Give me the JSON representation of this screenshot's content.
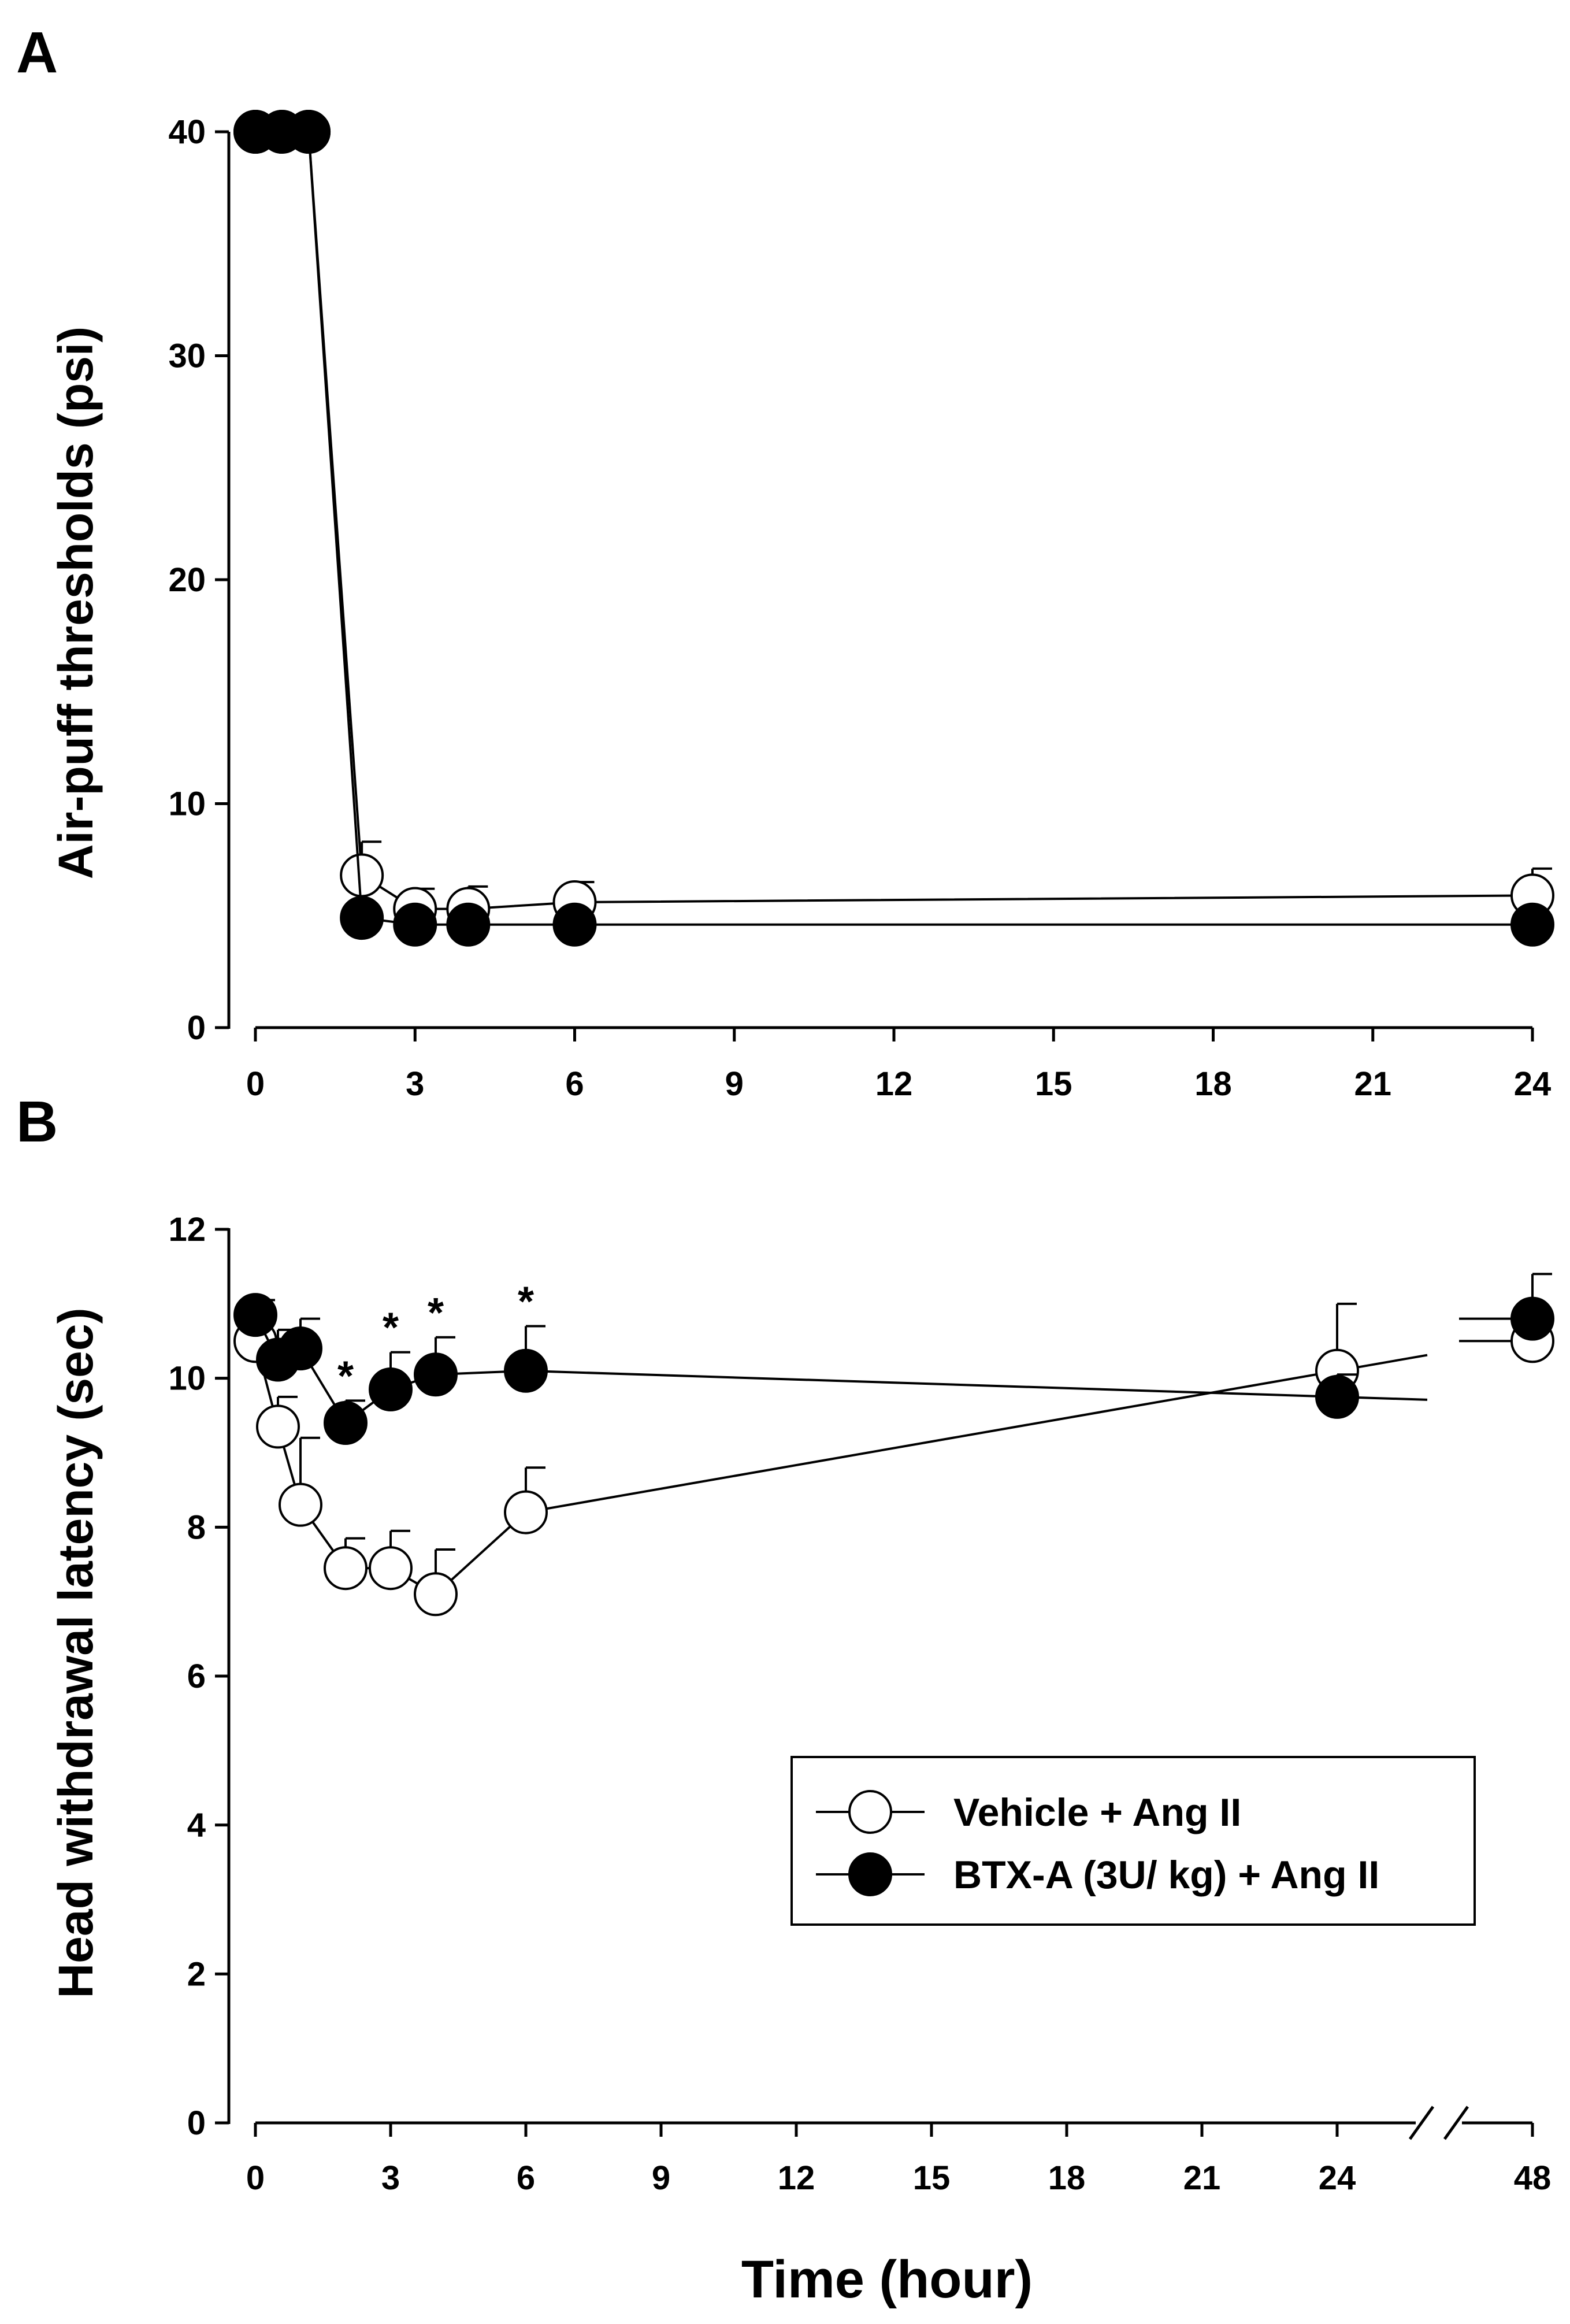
{
  "chart_data": [
    {
      "panel": "A",
      "type": "line",
      "ylabel": "Air-puff thresholds (psi)",
      "xlabel": "",
      "ylim": [
        0,
        40
      ],
      "xlim": [
        0,
        24
      ],
      "yticks": [
        0,
        10,
        20,
        30,
        40
      ],
      "xticks": [
        0,
        3,
        6,
        9,
        12,
        15,
        18,
        21,
        24
      ],
      "grid": false,
      "series": [
        {
          "name": "Vehicle + Ang II",
          "marker": "open-circle",
          "x": [
            0,
            0.5,
            1,
            2,
            3,
            4,
            6,
            24
          ],
          "y": [
            40,
            40,
            40,
            6.8,
            5.3,
            5.3,
            5.6,
            5.9
          ],
          "err": [
            0,
            0,
            0,
            1.5,
            0.9,
            1.0,
            0.9,
            1.2
          ]
        },
        {
          "name": "BTX-A (3U/ kg) + Ang II",
          "marker": "filled-circle",
          "x": [
            0,
            0.5,
            1,
            2,
            3,
            4,
            6,
            24
          ],
          "y": [
            40,
            40,
            40,
            4.9,
            4.6,
            4.6,
            4.6,
            4.6
          ],
          "err": [
            0,
            0,
            0,
            0.4,
            0.4,
            0.4,
            0.4,
            0.4
          ]
        }
      ]
    },
    {
      "panel": "B",
      "type": "line",
      "ylabel": "Head withdrawal latency (sec)",
      "xlabel": "Time (hour)",
      "ylim": [
        0,
        12
      ],
      "yticks": [
        0,
        2,
        4,
        6,
        8,
        10,
        12
      ],
      "xticks": [
        "0",
        "3",
        "6",
        "9",
        "12",
        "15",
        "18",
        "21",
        "24",
        "48"
      ],
      "axis_break": "between 24 and 48",
      "grid": false,
      "legend_position": "lower-right",
      "series": [
        {
          "name": "Vehicle + Ang II",
          "marker": "open-circle",
          "x": [
            0,
            0.5,
            1,
            2,
            3,
            4,
            6,
            24,
            48
          ],
          "y": [
            10.5,
            9.35,
            8.3,
            7.45,
            7.45,
            7.1,
            8.2,
            10.1,
            10.5
          ],
          "err": [
            0.3,
            0.4,
            0.9,
            0.4,
            0.5,
            0.6,
            0.6,
            0.9,
            0.3
          ]
        },
        {
          "name": "BTX-A (3U/ kg) + Ang II",
          "marker": "filled-circle",
          "x": [
            0,
            0.5,
            1,
            2,
            3,
            4,
            6,
            24,
            48
          ],
          "y": [
            10.85,
            10.25,
            10.4,
            9.4,
            9.85,
            10.05,
            10.1,
            9.75,
            10.8
          ],
          "err": [
            0.2,
            0.4,
            0.4,
            0.3,
            0.5,
            0.5,
            0.6,
            0.3,
            0.6
          ]
        }
      ],
      "significance": {
        "symbol": "*",
        "x": [
          2,
          3,
          4,
          6
        ]
      }
    }
  ],
  "legend": {
    "items": [
      {
        "label": "Vehicle + Ang II",
        "marker": "open-circle"
      },
      {
        "label": "BTX-A (3U/ kg) + Ang II",
        "marker": "filled-circle"
      }
    ]
  }
}
